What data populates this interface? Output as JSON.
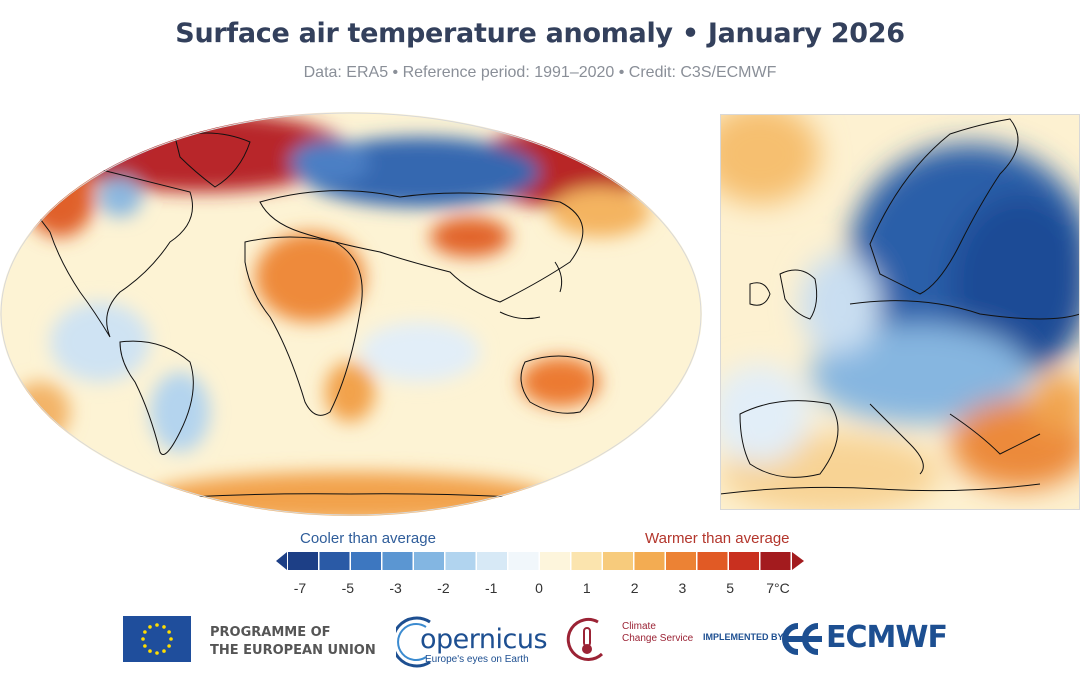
{
  "header": {
    "title": "Surface air temperature anomaly • January 2026",
    "subtitle": "Data: ERA5 • Reference period: 1991–2020 • Credit: C3S/ECMWF"
  },
  "maps": {
    "world": {
      "name": "Global anomaly map"
    },
    "europe": {
      "name": "Europe anomaly map"
    }
  },
  "legend": {
    "cooler_label": "Cooler than average",
    "warmer_label": "Warmer than average",
    "ticks": [
      "-7",
      "-5",
      "-3",
      "-2",
      "-1",
      "0",
      "1",
      "2",
      "3",
      "5",
      "7°C"
    ],
    "colors": [
      "#1d3f86",
      "#2a5aa6",
      "#3d77c0",
      "#5b96d2",
      "#83b6e2",
      "#b1d4ef",
      "#d7e9f6",
      "#f1f7fb",
      "#fdf5dc",
      "#fbe4ae",
      "#f7cb7c",
      "#f3ac52",
      "#ec8234",
      "#e15a25",
      "#c9301f",
      "#a31b1e"
    ]
  },
  "footer": {
    "eu_line1": "PROGRAMME OF",
    "eu_line2": "THE EUROPEAN UNION",
    "copernicus_word": "opernicus",
    "copernicus_tagline": "Europe's eyes on Earth",
    "c3s_line1": "Climate",
    "c3s_line2": "Change Service",
    "implemented_by": "IMPLEMENTED BY",
    "ecmwf": "ECMWF"
  }
}
